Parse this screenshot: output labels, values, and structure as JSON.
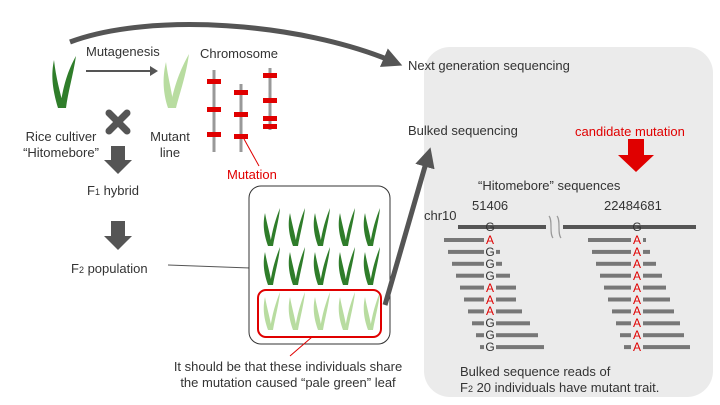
{
  "labels": {
    "mutagenesis": "Mutagenesis",
    "chromosome": "Chromosome",
    "cultivar_line1": "Rice cultiver",
    "cultivar_line2": "“Hitomebore”",
    "mutant_line1": "Mutant",
    "mutant_line2": "line",
    "mutation": "Mutation",
    "f1_prefix": "F",
    "f1_sub": "1",
    "f1_suffix": " hybrid",
    "f2_prefix": "F",
    "f2_sub": "2",
    "f2_suffix": " population",
    "ngs": "Next generation sequencing",
    "bulked": "Bulked sequencing",
    "candidate": "candidate mutation",
    "hitomebore_seq": "“Hitomebore” sequences",
    "chr": "chr10",
    "pos1": "51406",
    "pos2": "22484681",
    "ref1": "G",
    "ref2": "G",
    "note_line1": "It should be that these individuals share",
    "note_line2": "the mutation caused “pale green” leaf",
    "reads_line1": "Bulked sequence reads of",
    "reads_line2_prefix": "F",
    "reads_line2_sub": "2",
    "reads_line2_suffix": " 20 individuals have mutant trait."
  },
  "reads_locus1": [
    "A",
    "G",
    "G",
    "G",
    "A",
    "A",
    "A",
    "G",
    "G",
    "G"
  ],
  "reads_locus2": [
    "A",
    "A",
    "A",
    "A",
    "A",
    "A",
    "A",
    "A",
    "A",
    "A"
  ],
  "colors": {
    "dark_green": "#2f7d2a",
    "pale_green": "#b8dca0",
    "mutation_red": "#e00000",
    "panel_gray": "#ebebeb",
    "arrow_gray": "#555555"
  }
}
